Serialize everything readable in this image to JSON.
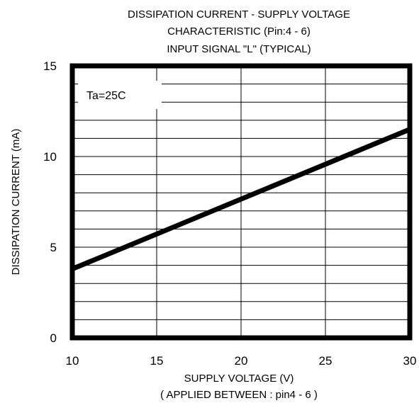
{
  "chart_data": {
    "type": "line",
    "title_lines": [
      "DISSIPATION CURRENT - SUPPLY VOLTAGE",
      "CHARACTERISTIC (Pin:4 - 6)",
      "INPUT SIGNAL \"L\" (TYPICAL)"
    ],
    "xlabel_lines": [
      "SUPPLY VOLTAGE (V)",
      "( APPLIED BETWEEN : pin4 - 6 )"
    ],
    "ylabel": "DISSIPATION CURRENT (mA)",
    "annotation": "Ta=25C",
    "xlim": [
      10,
      30
    ],
    "ylim": [
      0,
      15
    ],
    "x_ticks": [
      10,
      15,
      20,
      25,
      30
    ],
    "y_ticks": [
      0,
      5,
      10,
      15
    ],
    "x_minor_step": 1,
    "y_minor_step": 1,
    "grid": true,
    "series": [
      {
        "x": [
          10,
          30
        ],
        "y": [
          3.8,
          11.5
        ]
      }
    ]
  }
}
